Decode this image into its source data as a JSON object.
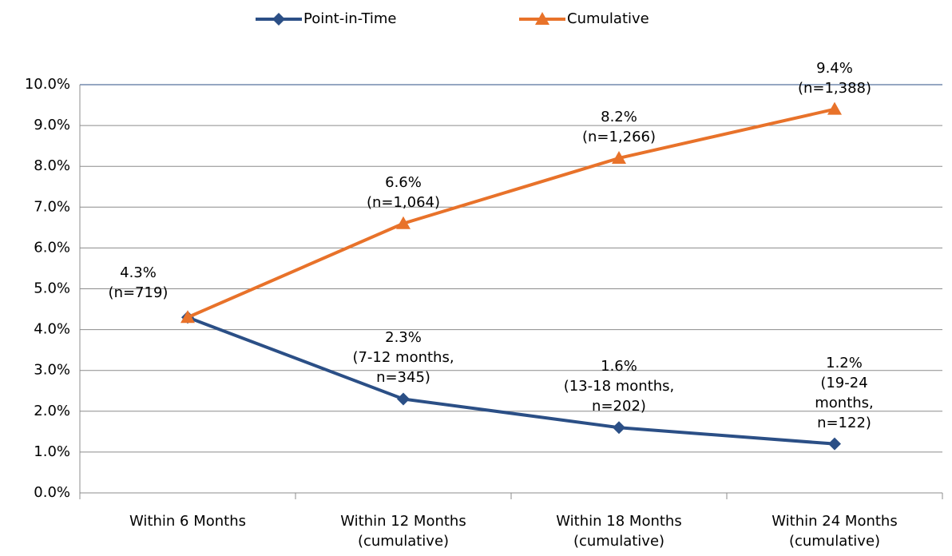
{
  "chart_data": {
    "type": "line",
    "categories": [
      "Within 6 Months",
      "Within 12 Months (cumulative)",
      "Within 18 Months (cumulative)",
      "Within 24 Months (cumulative)"
    ],
    "series": [
      {
        "name": "Point-in-Time",
        "color": "#2b4f86",
        "marker": "diamond",
        "values": [
          4.3,
          2.3,
          1.6,
          1.2
        ],
        "value_labels": [
          null,
          "2.3%\n(7-12 months,\nn=345)",
          "1.6%\n(13-18 months,\nn=202)",
          "1.2%\n(19-24 months,\nn=122)"
        ]
      },
      {
        "name": "Cumulative",
        "color": "#e8722a",
        "marker": "triangle",
        "values": [
          4.3,
          6.6,
          8.2,
          9.4
        ],
        "value_labels": [
          "4.3%\n(n=719)",
          "6.6%\n(n=1,064)",
          "8.2%\n(n=1,266)",
          "9.4%\n(n=1,388)"
        ]
      }
    ],
    "ylim": [
      0,
      10
    ],
    "yticks": [
      {
        "value": 0,
        "label": "0.0%"
      },
      {
        "value": 1,
        "label": "1.0%"
      },
      {
        "value": 2,
        "label": "2.0%"
      },
      {
        "value": 3,
        "label": "3.0%"
      },
      {
        "value": 4,
        "label": "4.0%"
      },
      {
        "value": 5,
        "label": "5.0%"
      },
      {
        "value": 6,
        "label": "6.0%"
      },
      {
        "value": 7,
        "label": "7.0%"
      },
      {
        "value": 8,
        "label": "8.0%"
      },
      {
        "value": 9,
        "label": "9.0%"
      },
      {
        "value": 10,
        "label": "10.0%"
      }
    ],
    "grid": true,
    "legend": "top"
  }
}
